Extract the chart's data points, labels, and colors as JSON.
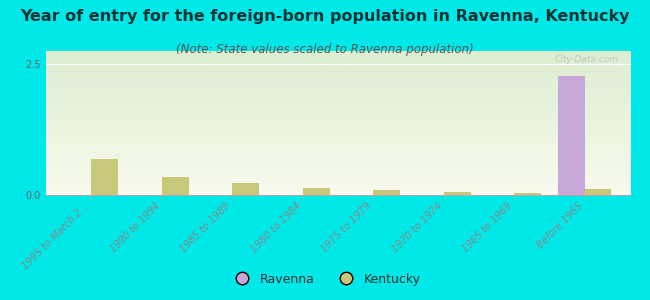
{
  "title": "Year of entry for the foreign-born population in Ravenna, Kentucky",
  "subtitle": "(Note: State values scaled to Ravenna population)",
  "categories": [
    "1995 to March 2...",
    "1990 to 1994",
    "1985 to 1989",
    "1980 to 1984",
    "1975 to 1979",
    "1970 to 1974",
    "1965 to 1969",
    "Before 1965"
  ],
  "ravenna_values": [
    0,
    0,
    0,
    0,
    0,
    0,
    0,
    2.27
  ],
  "kentucky_values": [
    0.68,
    0.35,
    0.22,
    0.14,
    0.09,
    0.06,
    0.04,
    0.12
  ],
  "ravenna_color": "#c8a8d8",
  "kentucky_color": "#c8c87a",
  "background_color": "#00e8e8",
  "grid_color": "#ffffff",
  "ylim": [
    0,
    2.75
  ],
  "yticks": [
    0,
    2.5
  ],
  "bar_width": 0.38,
  "watermark": "City-Data.com",
  "title_fontsize": 11.5,
  "subtitle_fontsize": 8.5,
  "tick_fontsize": 7,
  "legend_fontsize": 9,
  "title_color": "#003333",
  "subtitle_color": "#555555",
  "tick_color": "#888888"
}
